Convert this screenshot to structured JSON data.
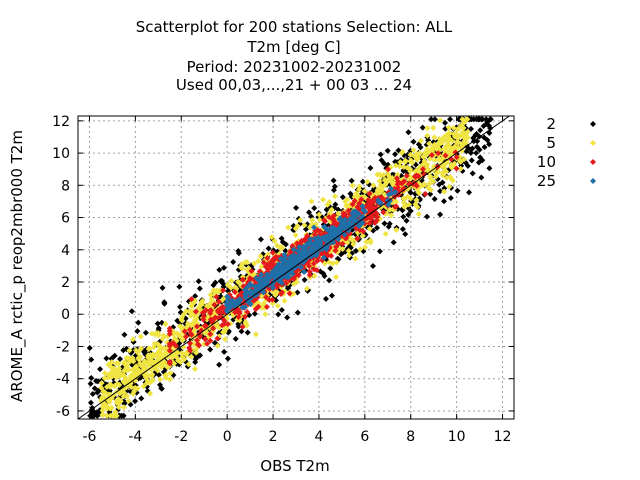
{
  "chart_data": {
    "type": "scatter",
    "title_lines": [
      "Scatterplot for  200 stations Selection: ALL",
      "T2m [deg C]",
      "Period: 20231002-20231002",
      "Used  00,03,...,21  + 00 03 ... 24"
    ],
    "xlabel": "OBS T2m",
    "ylabel": "AROME_A rctic_p reop2mbr000 T2m",
    "xlim": [
      -6.5,
      12.5
    ],
    "ylim": [
      -6.5,
      12.3
    ],
    "x_ticks": [
      -6,
      -4,
      -2,
      0,
      2,
      4,
      6,
      8,
      10,
      12
    ],
    "y_ticks": [
      -6,
      -4,
      -2,
      0,
      2,
      4,
      6,
      8,
      10,
      12
    ],
    "grid": true,
    "reference_line": "y = x",
    "legend_position": "right",
    "series": [
      {
        "name": "2",
        "color": "#000000",
        "spread": 1.3,
        "count": 900
      },
      {
        "name": "5",
        "color": "#f0e442",
        "spread": 0.95,
        "count": 1200
      },
      {
        "name": "10",
        "color": "#e41a1c",
        "spread": 0.6,
        "count": 700
      },
      {
        "name": "25",
        "color": "#1f6fa8",
        "spread": 0.35,
        "count": 350
      }
    ]
  }
}
